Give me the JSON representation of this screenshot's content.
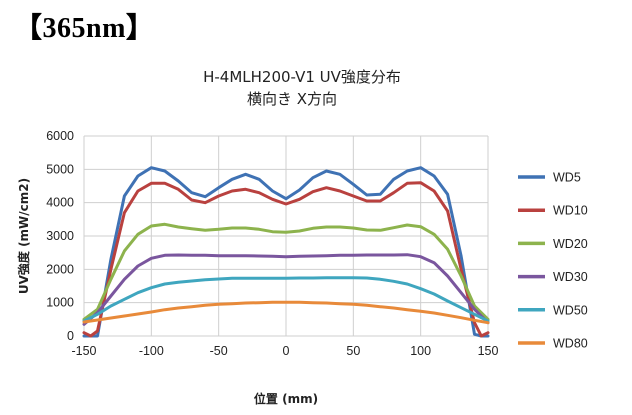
{
  "header": {
    "label": "【365nm】"
  },
  "chart_data": {
    "type": "line",
    "title": "H-4MLH200-V1 UV強度分布",
    "subtitle": "横向き X方向",
    "xlabel": "位置 (mm)",
    "ylabel": "UV強度 (mW/cm2)",
    "xlim": [
      -150,
      150
    ],
    "ylim": [
      0,
      6000
    ],
    "xticks": [
      -150,
      -100,
      -50,
      0,
      50,
      100,
      150
    ],
    "yticks": [
      0,
      1000,
      2000,
      3000,
      4000,
      5000,
      6000
    ],
    "grid": true,
    "legend_position": "right",
    "series": [
      {
        "name": "WD5",
        "color": "#3f72b4",
        "x": [
          -150,
          -145,
          -140,
          -130,
          -120,
          -110,
          -100,
          -90,
          -80,
          -70,
          -60,
          -50,
          -40,
          -30,
          -20,
          -10,
          0,
          10,
          20,
          30,
          40,
          50,
          60,
          70,
          80,
          90,
          100,
          110,
          120,
          130,
          140,
          145,
          150
        ],
        "y": [
          0,
          0,
          0,
          2300,
          4200,
          4800,
          5050,
          4950,
          4650,
          4300,
          4180,
          4450,
          4700,
          4850,
          4700,
          4350,
          4120,
          4380,
          4750,
          4950,
          4850,
          4550,
          4230,
          4250,
          4700,
          4950,
          5050,
          4800,
          4250,
          2400,
          50,
          0,
          0
        ]
      },
      {
        "name": "WD10",
        "color": "#b9413f",
        "x": [
          -150,
          -145,
          -140,
          -130,
          -120,
          -110,
          -100,
          -90,
          -80,
          -70,
          -60,
          -50,
          -40,
          -30,
          -20,
          -10,
          0,
          10,
          20,
          30,
          40,
          50,
          60,
          70,
          80,
          90,
          100,
          110,
          120,
          130,
          140,
          145,
          150
        ],
        "y": [
          100,
          0,
          150,
          2000,
          3700,
          4350,
          4580,
          4580,
          4400,
          4080,
          4000,
          4200,
          4350,
          4400,
          4300,
          4100,
          3960,
          4100,
          4330,
          4450,
          4350,
          4200,
          4050,
          4050,
          4300,
          4580,
          4600,
          4350,
          3750,
          2000,
          400,
          0,
          100
        ]
      },
      {
        "name": "WD20",
        "color": "#8db34d",
        "x": [
          -150,
          -140,
          -130,
          -120,
          -110,
          -100,
          -90,
          -80,
          -70,
          -60,
          -50,
          -40,
          -30,
          -20,
          -10,
          0,
          10,
          20,
          30,
          40,
          50,
          60,
          70,
          80,
          90,
          100,
          110,
          120,
          130,
          140,
          150
        ],
        "y": [
          500,
          800,
          1700,
          2550,
          3050,
          3300,
          3350,
          3270,
          3220,
          3170,
          3200,
          3240,
          3240,
          3200,
          3130,
          3110,
          3150,
          3230,
          3270,
          3270,
          3240,
          3180,
          3170,
          3250,
          3330,
          3280,
          3050,
          2600,
          1800,
          900,
          500
        ]
      },
      {
        "name": "WD30",
        "color": "#7a569e",
        "x": [
          -150,
          -140,
          -130,
          -120,
          -110,
          -100,
          -90,
          -80,
          -70,
          -60,
          -50,
          -40,
          -30,
          -20,
          -10,
          0,
          10,
          20,
          30,
          40,
          50,
          60,
          70,
          80,
          90,
          100,
          110,
          120,
          130,
          140,
          150
        ],
        "y": [
          350,
          700,
          1200,
          1700,
          2100,
          2330,
          2420,
          2430,
          2420,
          2420,
          2410,
          2410,
          2410,
          2400,
          2390,
          2380,
          2390,
          2400,
          2410,
          2420,
          2420,
          2430,
          2430,
          2430,
          2440,
          2380,
          2200,
          1800,
          1300,
          800,
          400
        ]
      },
      {
        "name": "WD50",
        "color": "#3fa6bf",
        "x": [
          -150,
          -140,
          -130,
          -120,
          -110,
          -100,
          -90,
          -80,
          -70,
          -60,
          -50,
          -40,
          -30,
          -20,
          -10,
          0,
          10,
          20,
          30,
          40,
          50,
          60,
          70,
          80,
          90,
          100,
          110,
          120,
          130,
          140,
          150
        ],
        "y": [
          450,
          650,
          900,
          1100,
          1300,
          1450,
          1560,
          1610,
          1650,
          1690,
          1710,
          1730,
          1730,
          1730,
          1730,
          1730,
          1740,
          1740,
          1750,
          1750,
          1750,
          1740,
          1700,
          1640,
          1560,
          1420,
          1260,
          1050,
          850,
          650,
          450
        ]
      },
      {
        "name": "WD80",
        "color": "#e88a3a",
        "x": [
          -150,
          -140,
          -130,
          -120,
          -110,
          -100,
          -90,
          -80,
          -70,
          -60,
          -50,
          -40,
          -30,
          -20,
          -10,
          0,
          10,
          20,
          30,
          40,
          50,
          60,
          70,
          80,
          90,
          100,
          110,
          120,
          130,
          140,
          150
        ],
        "y": [
          420,
          480,
          540,
          600,
          660,
          720,
          790,
          840,
          880,
          920,
          950,
          970,
          990,
          1000,
          1010,
          1010,
          1010,
          1000,
          990,
          970,
          950,
          920,
          880,
          840,
          790,
          740,
          690,
          620,
          550,
          470,
          400
        ]
      }
    ]
  }
}
